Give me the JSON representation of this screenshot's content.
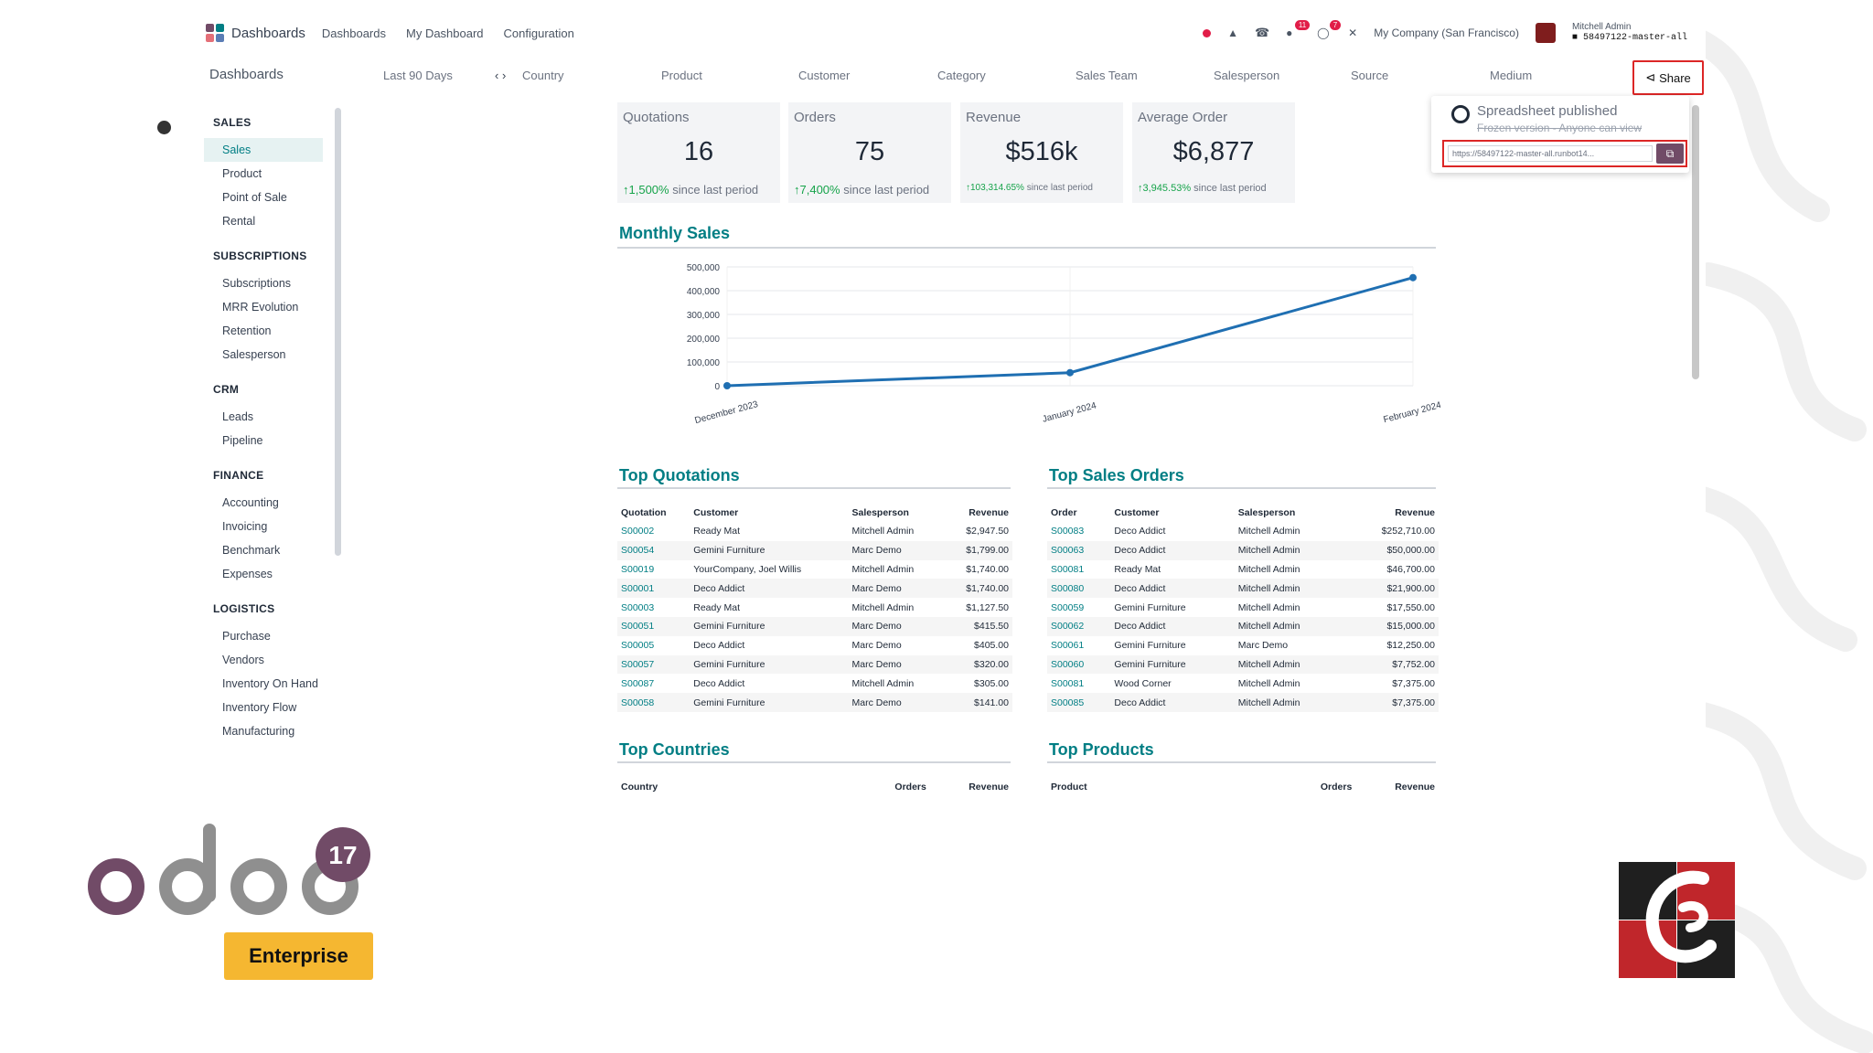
{
  "topnav": {
    "brand": "Dashboards",
    "menu": [
      "Dashboards",
      "My Dashboard",
      "Configuration"
    ],
    "company": "My Company (San Francisco)",
    "user_name": "Mitchell Admin",
    "user_db": "58497122-master-all",
    "badge_1": "11",
    "badge_2": "7"
  },
  "filterbar": {
    "title": "Dashboards",
    "period": "Last 90 Days",
    "filters": [
      "Country",
      "Product",
      "Customer",
      "Category",
      "Sales Team",
      "Salesperson",
      "Source",
      "Medium"
    ],
    "share_label": "Share"
  },
  "sidebar": {
    "groups": [
      {
        "title": "SALES",
        "items": [
          "Sales",
          "Product",
          "Point of Sale",
          "Rental"
        ]
      },
      {
        "title": "SUBSCRIPTIONS",
        "items": [
          "Subscriptions",
          "MRR Evolution",
          "Retention",
          "Salesperson"
        ]
      },
      {
        "title": "CRM",
        "items": [
          "Leads",
          "Pipeline"
        ]
      },
      {
        "title": "FINANCE",
        "items": [
          "Accounting",
          "Invoicing",
          "Benchmark",
          "Expenses"
        ]
      },
      {
        "title": "LOGISTICS",
        "items": [
          "Purchase",
          "Vendors",
          "Inventory On Hand",
          "Inventory Flow",
          "Manufacturing"
        ]
      }
    ],
    "active": "Sales"
  },
  "kpis": [
    {
      "title": "Quotations",
      "value": "16",
      "delta": "1,500%",
      "note": "since last period"
    },
    {
      "title": "Orders",
      "value": "75",
      "delta": "7,400%",
      "note": "since last period"
    },
    {
      "title": "Revenue",
      "value": "$516k",
      "delta": "103,314.65%",
      "note": "since last period"
    },
    {
      "title": "Average Order",
      "value": "$6,877",
      "delta": "3,945.53%",
      "note": "since last period"
    }
  ],
  "monthly_sales": {
    "title": "Monthly Sales"
  },
  "chart_data": {
    "type": "line",
    "title": "Monthly Sales",
    "x": [
      "December 2023",
      "January 2024",
      "February 2024"
    ],
    "series": [
      {
        "values": [
          0,
          55000,
          455000
        ]
      }
    ],
    "yticks": [
      "500,000",
      "400,000",
      "300,000",
      "200,000",
      "100,000",
      "0"
    ],
    "ylim": [
      0,
      500000
    ],
    "grid": true,
    "color": "#1f6fb2"
  },
  "top_quotations": {
    "title": "Top Quotations",
    "headers": [
      "Quotation",
      "Customer",
      "Salesperson",
      "Revenue"
    ],
    "rows": [
      [
        "S00002",
        "Ready Mat",
        "Mitchell Admin",
        "$2,947.50"
      ],
      [
        "S00054",
        "Gemini Furniture",
        "Marc Demo",
        "$1,799.00"
      ],
      [
        "S00019",
        "YourCompany, Joel Willis",
        "Mitchell Admin",
        "$1,740.00"
      ],
      [
        "S00001",
        "Deco Addict",
        "Marc Demo",
        "$1,740.00"
      ],
      [
        "S00003",
        "Ready Mat",
        "Mitchell Admin",
        "$1,127.50"
      ],
      [
        "S00051",
        "Gemini Furniture",
        "Marc Demo",
        "$415.50"
      ],
      [
        "S00005",
        "Deco Addict",
        "Marc Demo",
        "$405.00"
      ],
      [
        "S00057",
        "Gemini Furniture",
        "Marc Demo",
        "$320.00"
      ],
      [
        "S00087",
        "Deco Addict",
        "Mitchell Admin",
        "$305.00"
      ],
      [
        "S00058",
        "Gemini Furniture",
        "Marc Demo",
        "$141.00"
      ]
    ]
  },
  "top_sales_orders": {
    "title": "Top Sales Orders",
    "headers": [
      "Order",
      "Customer",
      "Salesperson",
      "Revenue"
    ],
    "rows": [
      [
        "S00083",
        "Deco Addict",
        "Mitchell Admin",
        "$252,710.00"
      ],
      [
        "S00063",
        "Deco Addict",
        "Mitchell Admin",
        "$50,000.00"
      ],
      [
        "S00081",
        "Ready Mat",
        "Mitchell Admin",
        "$46,700.00"
      ],
      [
        "S00080",
        "Deco Addict",
        "Mitchell Admin",
        "$21,900.00"
      ],
      [
        "S00059",
        "Gemini Furniture",
        "Mitchell Admin",
        "$17,550.00"
      ],
      [
        "S00062",
        "Deco Addict",
        "Mitchell Admin",
        "$15,000.00"
      ],
      [
        "S00061",
        "Gemini Furniture",
        "Marc Demo",
        "$12,250.00"
      ],
      [
        "S00060",
        "Gemini Furniture",
        "Mitchell Admin",
        "$7,752.00"
      ],
      [
        "S00081",
        "Wood Corner",
        "Mitchell Admin",
        "$7,375.00"
      ],
      [
        "S00085",
        "Deco Addict",
        "Mitchell Admin",
        "$7,375.00"
      ]
    ]
  },
  "top_countries": {
    "title": "Top Countries",
    "headers": [
      "Country",
      "Orders",
      "Revenue"
    ]
  },
  "top_products": {
    "title": "Top Products",
    "headers": [
      "Product",
      "Orders",
      "Revenue"
    ]
  },
  "share_popover": {
    "title": "Spreadsheet published",
    "subtitle": "Frozen version - Anyone can view",
    "url": "https://58497122-master-all.runbot14..."
  },
  "branding": {
    "odoo_version": "17",
    "edition": "Enterprise",
    "odoo_color": "#714b67",
    "enterprise_color": "#f5b731"
  }
}
